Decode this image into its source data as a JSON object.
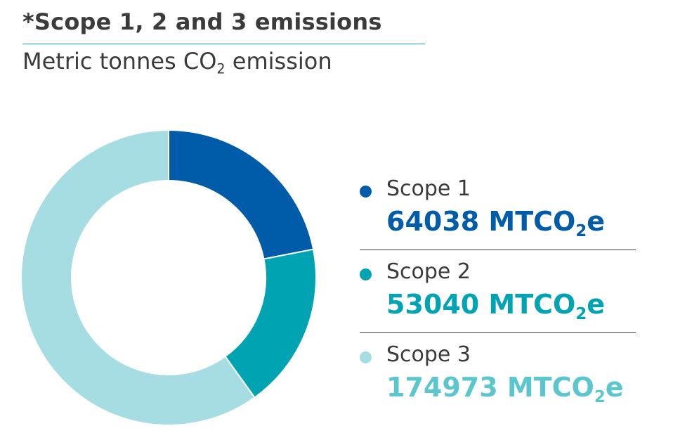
{
  "header": {
    "title": "*Scope 1, 2 and 3 emissions",
    "subtitle_pre": "Metric tonnes CO",
    "subtitle_sub": "2",
    "subtitle_post": " emission"
  },
  "chart_data": {
    "type": "pie",
    "donut": true,
    "title": "*Scope 1, 2 and 3 emissions",
    "subtitle": "Metric tonnes CO2 emission",
    "unit": "MTCO2e",
    "legend_position": "right",
    "series": [
      {
        "name": "Scope 1",
        "value": 64038,
        "value_text": "64038",
        "color": "#005ca8"
      },
      {
        "name": "Scope 2",
        "value": 53040,
        "value_text": "53040",
        "color": "#00a3b1"
      },
      {
        "name": "Scope 3",
        "value": 174973,
        "value_text": "174973",
        "color": "#a5dde3"
      }
    ]
  },
  "legend": {
    "unit_pre": " MTCO",
    "unit_sub": "2",
    "unit_post": "e",
    "value_colors": [
      "#005ca8",
      "#00a3b1",
      "#5cc6cf"
    ]
  }
}
